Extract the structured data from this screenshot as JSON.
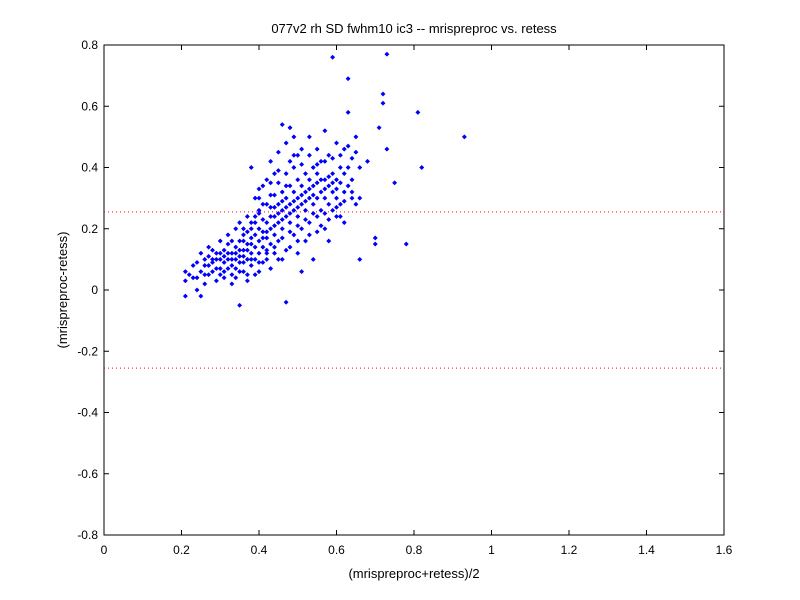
{
  "chart_data": {
    "type": "scatter",
    "title": "077v2 rh SD fwhm10 ic3 -- mrispreproc vs. retess",
    "xlabel": "(mrispreproc+retess)/2",
    "ylabel": "(mrispreproc-retess)",
    "xlim": [
      0,
      1.6
    ],
    "ylim": [
      -0.8,
      0.8
    ],
    "x_ticks": [
      "0",
      "0.2",
      "0.4",
      "0.6",
      "0.8",
      "1",
      "1.2",
      "1.4",
      "1.6"
    ],
    "y_ticks": [
      "-0.8",
      "-0.6",
      "-0.4",
      "-0.2",
      "0",
      "0.2",
      "0.4",
      "0.6",
      "0.8"
    ],
    "grid": false,
    "marker_color": "#0000ff",
    "reference_line_color": "#ff0000",
    "reference_lines_y": [
      0.255,
      -0.255
    ],
    "points": [
      [
        0.21,
        -0.02
      ],
      [
        0.21,
        0.03
      ],
      [
        0.21,
        0.06
      ],
      [
        0.23,
        0.04
      ],
      [
        0.24,
        0.0
      ],
      [
        0.24,
        0.09
      ],
      [
        0.25,
        0.12
      ],
      [
        0.25,
        -0.02
      ],
      [
        0.26,
        0.05
      ],
      [
        0.26,
        0.1
      ],
      [
        0.27,
        0.08
      ],
      [
        0.27,
        0.14
      ],
      [
        0.28,
        0.06
      ],
      [
        0.28,
        0.09
      ],
      [
        0.29,
        0.1
      ],
      [
        0.29,
        0.03
      ],
      [
        0.3,
        0.07
      ],
      [
        0.3,
        0.12
      ],
      [
        0.3,
        0.16
      ],
      [
        0.31,
        0.09
      ],
      [
        0.31,
        0.13
      ],
      [
        0.31,
        0.04
      ],
      [
        0.32,
        0.1
      ],
      [
        0.32,
        0.15
      ],
      [
        0.32,
        0.18
      ],
      [
        0.33,
        0.08
      ],
      [
        0.33,
        0.12
      ],
      [
        0.33,
        0.02
      ],
      [
        0.34,
        0.1
      ],
      [
        0.34,
        0.14
      ],
      [
        0.34,
        0.2
      ],
      [
        0.35,
        0.06
      ],
      [
        0.35,
        0.11
      ],
      [
        0.35,
        0.16
      ],
      [
        0.35,
        0.22
      ],
      [
        0.35,
        -0.05
      ],
      [
        0.36,
        0.09
      ],
      [
        0.36,
        0.13
      ],
      [
        0.36,
        0.18
      ],
      [
        0.37,
        0.1
      ],
      [
        0.37,
        0.15
      ],
      [
        0.37,
        0.05
      ],
      [
        0.37,
        0.24
      ],
      [
        0.38,
        0.12
      ],
      [
        0.38,
        0.17
      ],
      [
        0.38,
        0.2
      ],
      [
        0.38,
        0.08
      ],
      [
        0.38,
        0.4
      ],
      [
        0.39,
        0.14
      ],
      [
        0.39,
        0.1
      ],
      [
        0.39,
        0.22
      ],
      [
        0.39,
        0.3
      ],
      [
        0.4,
        0.12
      ],
      [
        0.4,
        0.16
      ],
      [
        0.4,
        0.25
      ],
      [
        0.4,
        0.06
      ],
      [
        0.4,
        0.33
      ],
      [
        0.41,
        0.14
      ],
      [
        0.41,
        0.19
      ],
      [
        0.41,
        0.28
      ],
      [
        0.41,
        0.09
      ],
      [
        0.42,
        0.13
      ],
      [
        0.42,
        0.22
      ],
      [
        0.42,
        0.36
      ],
      [
        0.42,
        0.17
      ],
      [
        0.43,
        0.15
      ],
      [
        0.43,
        0.2
      ],
      [
        0.43,
        0.27
      ],
      [
        0.43,
        0.42
      ],
      [
        0.43,
        0.07
      ],
      [
        0.44,
        0.18
      ],
      [
        0.44,
        0.24
      ],
      [
        0.44,
        0.31
      ],
      [
        0.44,
        0.12
      ],
      [
        0.45,
        0.22
      ],
      [
        0.45,
        0.28
      ],
      [
        0.45,
        0.35
      ],
      [
        0.45,
        0.45
      ],
      [
        0.45,
        0.16
      ],
      [
        0.46,
        0.2
      ],
      [
        0.46,
        0.26
      ],
      [
        0.46,
        0.32
      ],
      [
        0.46,
        0.54
      ],
      [
        0.46,
        0.1
      ],
      [
        0.47,
        0.24
      ],
      [
        0.47,
        0.3
      ],
      [
        0.47,
        0.38
      ],
      [
        0.47,
        0.48
      ],
      [
        0.47,
        -0.04
      ],
      [
        0.48,
        0.22
      ],
      [
        0.48,
        0.28
      ],
      [
        0.48,
        0.34
      ],
      [
        0.48,
        0.42
      ],
      [
        0.48,
        0.53
      ],
      [
        0.48,
        0.14
      ],
      [
        0.49,
        0.26
      ],
      [
        0.49,
        0.32
      ],
      [
        0.49,
        0.4
      ],
      [
        0.49,
        0.18
      ],
      [
        0.49,
        0.5
      ],
      [
        0.5,
        0.24
      ],
      [
        0.5,
        0.3
      ],
      [
        0.5,
        0.36
      ],
      [
        0.5,
        0.44
      ],
      [
        0.5,
        0.12
      ],
      [
        0.51,
        0.28
      ],
      [
        0.51,
        0.34
      ],
      [
        0.51,
        0.2
      ],
      [
        0.51,
        0.46
      ],
      [
        0.51,
        0.06
      ],
      [
        0.52,
        0.26
      ],
      [
        0.52,
        0.32
      ],
      [
        0.52,
        0.38
      ],
      [
        0.52,
        0.16
      ],
      [
        0.53,
        0.3
      ],
      [
        0.53,
        0.36
      ],
      [
        0.53,
        0.22
      ],
      [
        0.53,
        0.5
      ],
      [
        0.54,
        0.28
      ],
      [
        0.54,
        0.34
      ],
      [
        0.54,
        0.4
      ],
      [
        0.54,
        0.1
      ],
      [
        0.55,
        0.3
      ],
      [
        0.55,
        0.38
      ],
      [
        0.55,
        0.24
      ],
      [
        0.55,
        0.46
      ],
      [
        0.56,
        0.32
      ],
      [
        0.56,
        0.26
      ],
      [
        0.56,
        0.42
      ],
      [
        0.57,
        0.3
      ],
      [
        0.57,
        0.36
      ],
      [
        0.57,
        0.2
      ],
      [
        0.57,
        0.52
      ],
      [
        0.58,
        0.34
      ],
      [
        0.58,
        0.28
      ],
      [
        0.58,
        0.44
      ],
      [
        0.58,
        0.16
      ],
      [
        0.59,
        0.32
      ],
      [
        0.59,
        0.38
      ],
      [
        0.59,
        0.76
      ],
      [
        0.6,
        0.3
      ],
      [
        0.6,
        0.36
      ],
      [
        0.6,
        0.24
      ],
      [
        0.6,
        0.48
      ],
      [
        0.61,
        0.28
      ],
      [
        0.61,
        0.4
      ],
      [
        0.62,
        0.32
      ],
      [
        0.62,
        0.46
      ],
      [
        0.62,
        0.22
      ],
      [
        0.63,
        0.58
      ],
      [
        0.63,
        0.69
      ],
      [
        0.63,
        0.34
      ],
      [
        0.64,
        0.3
      ],
      [
        0.64,
        0.43
      ],
      [
        0.64,
        0.36
      ],
      [
        0.65,
        0.28
      ],
      [
        0.65,
        0.5
      ],
      [
        0.66,
        0.1
      ],
      [
        0.66,
        0.3
      ],
      [
        0.66,
        0.4
      ],
      [
        0.68,
        0.42
      ],
      [
        0.7,
        0.17
      ],
      [
        0.7,
        0.15
      ],
      [
        0.71,
        0.53
      ],
      [
        0.72,
        0.61
      ],
      [
        0.72,
        0.64
      ],
      [
        0.73,
        0.77
      ],
      [
        0.73,
        0.46
      ],
      [
        0.75,
        0.35
      ],
      [
        0.78,
        0.15
      ],
      [
        0.81,
        0.58
      ],
      [
        0.82,
        0.4
      ],
      [
        0.93,
        0.5
      ],
      [
        0.22,
        0.05
      ],
      [
        0.23,
        0.08
      ],
      [
        0.26,
        0.02
      ],
      [
        0.27,
        0.11
      ],
      [
        0.28,
        0.13
      ],
      [
        0.29,
        0.07
      ],
      [
        0.3,
        0.1
      ],
      [
        0.31,
        0.11
      ],
      [
        0.32,
        0.07
      ],
      [
        0.33,
        0.16
      ],
      [
        0.34,
        0.07
      ],
      [
        0.35,
        0.13
      ],
      [
        0.36,
        0.11
      ],
      [
        0.36,
        0.2
      ],
      [
        0.37,
        0.13
      ],
      [
        0.38,
        0.15
      ],
      [
        0.39,
        0.18
      ],
      [
        0.4,
        0.2
      ],
      [
        0.41,
        0.17
      ],
      [
        0.41,
        0.23
      ],
      [
        0.42,
        0.19
      ],
      [
        0.43,
        0.24
      ],
      [
        0.44,
        0.21
      ],
      [
        0.45,
        0.25
      ],
      [
        0.46,
        0.23
      ],
      [
        0.47,
        0.27
      ],
      [
        0.48,
        0.25
      ],
      [
        0.49,
        0.29
      ],
      [
        0.5,
        0.27
      ],
      [
        0.51,
        0.31
      ],
      [
        0.52,
        0.29
      ],
      [
        0.53,
        0.33
      ],
      [
        0.54,
        0.31
      ],
      [
        0.55,
        0.35
      ],
      [
        0.56,
        0.36
      ],
      [
        0.57,
        0.33
      ],
      [
        0.58,
        0.37
      ],
      [
        0.59,
        0.35
      ],
      [
        0.6,
        0.33
      ],
      [
        0.61,
        0.35
      ],
      [
        0.62,
        0.38
      ],
      [
        0.63,
        0.4
      ],
      [
        0.47,
        0.34
      ],
      [
        0.46,
        0.29
      ],
      [
        0.44,
        0.27
      ],
      [
        0.43,
        0.31
      ],
      [
        0.4,
        0.26
      ],
      [
        0.39,
        0.24
      ],
      [
        0.38,
        0.22
      ],
      [
        0.37,
        0.19
      ],
      [
        0.36,
        0.16
      ],
      [
        0.35,
        0.09
      ],
      [
        0.34,
        0.12
      ],
      [
        0.33,
        0.1
      ],
      [
        0.32,
        0.12
      ],
      [
        0.31,
        0.06
      ],
      [
        0.3,
        0.05
      ],
      [
        0.29,
        0.12
      ],
      [
        0.28,
        0.1
      ],
      [
        0.27,
        0.05
      ],
      [
        0.26,
        0.08
      ],
      [
        0.25,
        0.06
      ],
      [
        0.24,
        0.04
      ],
      [
        0.42,
        0.1
      ],
      [
        0.44,
        0.14
      ],
      [
        0.46,
        0.17
      ],
      [
        0.48,
        0.19
      ],
      [
        0.5,
        0.21
      ],
      [
        0.52,
        0.23
      ],
      [
        0.54,
        0.25
      ],
      [
        0.56,
        0.21
      ],
      [
        0.58,
        0.23
      ],
      [
        0.6,
        0.27
      ],
      [
        0.62,
        0.29
      ],
      [
        0.64,
        0.32
      ],
      [
        0.45,
        0.39
      ],
      [
        0.49,
        0.44
      ],
      [
        0.51,
        0.41
      ],
      [
        0.53,
        0.44
      ],
      [
        0.55,
        0.41
      ],
      [
        0.57,
        0.42
      ],
      [
        0.59,
        0.43
      ],
      [
        0.61,
        0.44
      ],
      [
        0.63,
        0.47
      ],
      [
        0.65,
        0.45
      ],
      [
        0.4,
        0.3
      ],
      [
        0.41,
        0.34
      ],
      [
        0.42,
        0.28
      ],
      [
        0.43,
        0.35
      ],
      [
        0.44,
        0.38
      ],
      [
        0.39,
        0.05
      ],
      [
        0.37,
        0.03
      ],
      [
        0.34,
        0.04
      ],
      [
        0.33,
        0.05
      ],
      [
        0.36,
        0.06
      ],
      [
        0.38,
        0.1
      ],
      [
        0.4,
        0.09
      ],
      [
        0.42,
        0.12
      ],
      [
        0.45,
        0.1
      ],
      [
        0.47,
        0.13
      ],
      [
        0.5,
        0.16
      ],
      [
        0.53,
        0.18
      ],
      [
        0.55,
        0.19
      ],
      [
        0.57,
        0.25
      ],
      [
        0.59,
        0.26
      ],
      [
        0.61,
        0.24
      ]
    ]
  }
}
